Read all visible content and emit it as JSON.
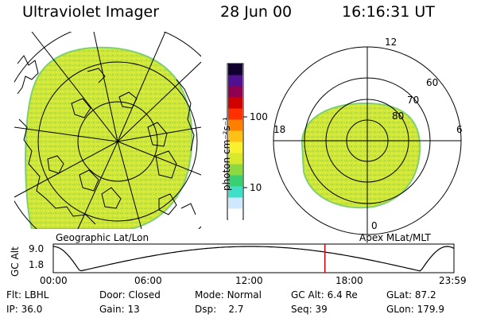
{
  "header": {
    "instrument": "Ultraviolet Imager",
    "date": "28 Jun 00",
    "time": "16:16:31 UT"
  },
  "colorbar": {
    "label": "photon cm⁻²s⁻¹",
    "ticks": [
      "100",
      "10"
    ],
    "colors": [
      "#ffffff",
      "#d0e8ff",
      "#40e0c8",
      "#38d070",
      "#8cd840",
      "#d8e82c",
      "#f8f030",
      "#ffc018",
      "#ff8000",
      "#ff3000",
      "#d00000",
      "#900050",
      "#501090",
      "#100030"
    ]
  },
  "geo_map": {
    "caption": "Geographic Lat/Lon",
    "fill_color": "#c8e436"
  },
  "polar_plot": {
    "caption": "Apex MLat/MLT",
    "mlt_labels": {
      "top": "12",
      "left": "18",
      "right": "6",
      "bottom": "0"
    },
    "lat_labels": [
      "60",
      "70",
      "80"
    ]
  },
  "altitude_plot": {
    "ylabel": "GC Alt",
    "ytick_top": "9.0",
    "ytick_bottom": "1.8",
    "xticks": [
      "00:00",
      "06:00",
      "12:00",
      "18:00",
      "23:59"
    ],
    "current_time_marker_hours": 16.27,
    "marker_color": "#cc0000"
  },
  "status": {
    "row1": [
      {
        "label": "Flt:",
        "value": "LBHL"
      },
      {
        "label": "Door:",
        "value": "Closed"
      },
      {
        "label": "Mode:",
        "value": "Normal"
      },
      {
        "label": "GC Alt:",
        "value": "6.4 Re"
      },
      {
        "label": "GLat:",
        "value": "87.2"
      }
    ],
    "row2": [
      {
        "label": "IP:",
        "value": "36.0"
      },
      {
        "label": "Gain:",
        "value": "13"
      },
      {
        "label": "Dsp:",
        "value": "2.7"
      },
      {
        "label": "Seq:",
        "value": "39"
      },
      {
        "label": "GLon:",
        "value": "179.9"
      }
    ]
  }
}
